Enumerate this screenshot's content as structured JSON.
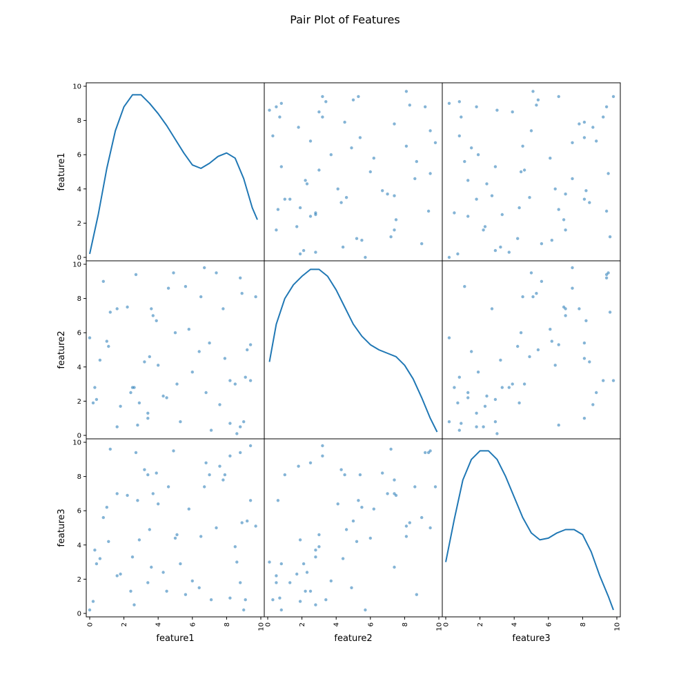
{
  "title": "Pair Plot of Features",
  "features": [
    "feature1",
    "feature2",
    "feature3"
  ],
  "colors": {
    "series": "#1f77b4",
    "frame": "#000000",
    "background": "#ffffff"
  },
  "chart_data": {
    "type": "scatter",
    "title": "Pair Plot of Features",
    "variables": [
      "feature1",
      "feature2",
      "feature3"
    ],
    "axis_range": [
      0,
      10
    ],
    "ticks": [
      0,
      2,
      4,
      6,
      8,
      10
    ],
    "grid": false,
    "diagonal": [
      {
        "variable": "feature1",
        "type": "line",
        "x": [
          0,
          0.5,
          1,
          1.5,
          2,
          2.5,
          3,
          3.5,
          4,
          4.5,
          5,
          5.5,
          6,
          6.5,
          7,
          7.5,
          8,
          8.5,
          9,
          9.5,
          9.8
        ],
        "y": [
          0.2,
          2.5,
          5.2,
          7.4,
          8.8,
          9.5,
          9.5,
          9.0,
          8.4,
          7.7,
          6.9,
          6.1,
          5.4,
          5.2,
          5.5,
          5.9,
          6.1,
          5.8,
          4.6,
          2.9,
          2.2
        ]
      },
      {
        "variable": "feature2",
        "type": "line",
        "x": [
          0.1,
          0.5,
          1,
          1.5,
          2,
          2.5,
          3,
          3.5,
          4,
          4.5,
          5,
          5.5,
          6,
          6.5,
          7,
          7.5,
          8,
          8.5,
          9,
          9.5,
          9.9
        ],
        "y": [
          4.3,
          6.5,
          8.0,
          8.8,
          9.3,
          9.7,
          9.7,
          9.3,
          8.5,
          7.5,
          6.5,
          5.8,
          5.3,
          5.0,
          4.8,
          4.6,
          4.1,
          3.3,
          2.2,
          1.0,
          0.2
        ]
      },
      {
        "variable": "feature3",
        "type": "line",
        "x": [
          0,
          0.5,
          1,
          1.5,
          2,
          2.5,
          3,
          3.5,
          4,
          4.5,
          5,
          5.5,
          6,
          6.5,
          7,
          7.5,
          8,
          8.5,
          9,
          9.5,
          9.8
        ],
        "y": [
          3.0,
          5.5,
          7.8,
          9.0,
          9.5,
          9.5,
          9.0,
          8.0,
          6.8,
          5.6,
          4.7,
          4.3,
          4.4,
          4.7,
          4.9,
          4.9,
          4.6,
          3.6,
          2.2,
          1.0,
          0.2
        ]
      }
    ],
    "points": {
      "feature1": [
        6.8,
        0.0,
        2.7,
        8.9,
        4.5,
        3.4,
        1.0,
        7.8,
        7.9,
        8.6,
        3.6,
        8.8,
        0.2,
        1.1,
        9.4,
        3.4,
        5.3,
        9.7,
        6.7,
        3.5,
        8.2,
        2.6,
        2.4,
        1.6,
        7.1,
        9.2,
        6.5,
        3.2,
        2.8,
        0.6,
        1.8,
        4.6,
        9.0,
        2.2,
        5.1,
        0.3,
        7.0,
        5.8,
        1.2,
        8.2,
        0.4,
        4.0,
        7.4,
        6.0,
        8.8,
        3.9,
        5.6,
        8.5,
        2.9,
        4.9,
        1.6,
        3.7,
        6.4,
        9.4,
        2.5,
        7.6,
        0.8,
        5.0,
        9.1,
        4.3
      ],
      "feature2": [
        2.5,
        5.7,
        9.4,
        8.3,
        2.2,
        1.0,
        5.5,
        7.4,
        4.5,
        0.1,
        7.4,
        9.2,
        1.9,
        5.2,
        3.2,
        1.3,
        0.8,
        8.1,
        9.8,
        4.6,
        3.2,
        2.8,
        2.5,
        7.4,
        0.3,
        5.0,
        8.1,
        4.3,
        0.6,
        4.4,
        1.7,
        8.6,
        0.8,
        7.5,
        3.0,
        2.8,
        5.4,
        6.2,
        7.2,
        0.7,
        2.1,
        4.1,
        9.5,
        3.7,
        0.5,
        6.7,
        8.7,
        3.0,
        1.9,
        9.5,
        0.5,
        7.0,
        4.9,
        5.3,
        2.8,
        1.8,
        9.0,
        6.0,
        3.4,
        2.3
      ],
      "feature3": [
        8.8,
        0.2,
        9.4,
        5.3,
        1.3,
        8.1,
        6.2,
        7.8,
        8.1,
        3.0,
        2.7,
        9.4,
        0.7,
        4.2,
        9.8,
        1.8,
        2.9,
        5.1,
        7.4,
        4.9,
        9.2,
        0.5,
        1.3,
        7.0,
        0.8,
        5.4,
        4.5,
        8.4,
        6.6,
        3.2,
        2.3,
        7.4,
        0.2,
        6.9,
        4.6,
        3.7,
        8.1,
        6.1,
        9.6,
        0.9,
        2.9,
        6.4,
        5.0,
        1.9,
        1.8,
        8.2,
        1.1,
        3.9,
        4.3,
        9.5,
        2.2,
        7.0,
        1.5,
        6.6,
        3.3,
        8.6,
        5.6,
        4.4,
        0.8,
        2.4
      ]
    }
  }
}
